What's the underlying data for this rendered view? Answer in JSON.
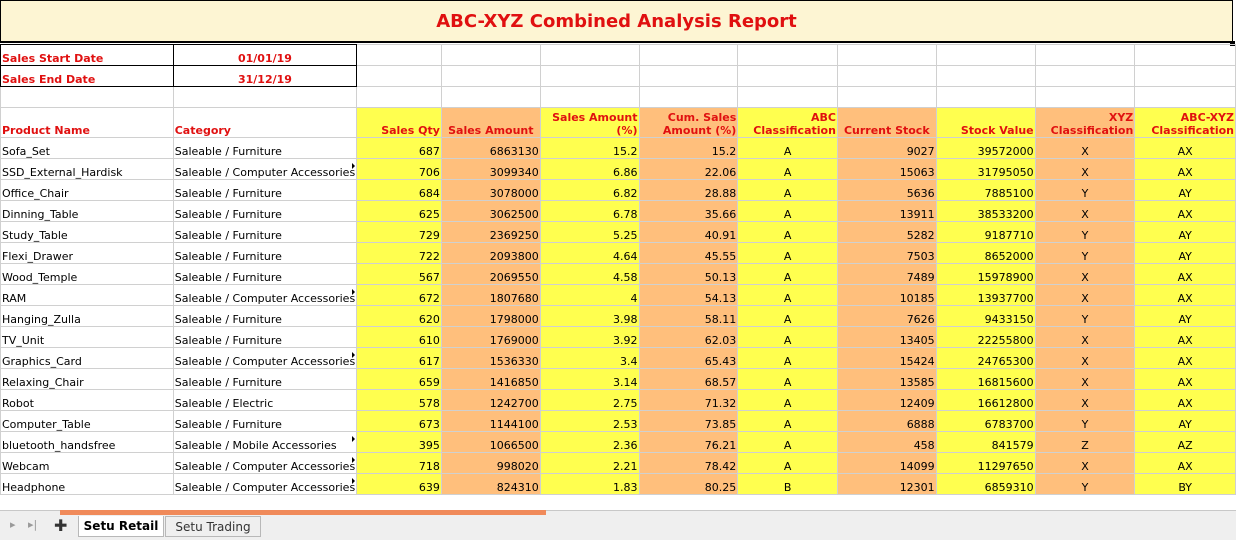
{
  "report": {
    "title": "ABC-XYZ Combined Analysis Report",
    "start_label": "Sales Start Date",
    "start_value": "01/01/19",
    "end_label": "Sales End Date",
    "end_value": "31/12/19"
  },
  "headers": {
    "product": "Product Name",
    "category": "Category",
    "qty": "Sales Qty",
    "amount": "Sales Amount",
    "amount_pct": "Sales Amount (%)",
    "cum": "Cum. Sales Amount (%)",
    "abc": "ABC Classification",
    "stock": "Current Stock",
    "stock_value": "Stock Value",
    "xyz": "XYZ Classification",
    "abcxyz": "ABC-XYZ Classification"
  },
  "rows": [
    {
      "product": "Sofa_Set",
      "category": "Saleable / Furniture",
      "qty": "687",
      "amount": "6863130",
      "pct": "15.2",
      "cum": "15.2",
      "abc": "A",
      "stock": "9027",
      "value": "39572000",
      "xyz": "X",
      "abcxyz": "AX"
    },
    {
      "product": "SSD_External_Hardisk",
      "category": "Saleable / Computer Accessories",
      "qty": "706",
      "amount": "3099340",
      "pct": "6.86",
      "cum": "22.06",
      "abc": "A",
      "stock": "15063",
      "value": "31795050",
      "xyz": "X",
      "abcxyz": "AX"
    },
    {
      "product": "Office_Chair",
      "category": "Saleable / Furniture",
      "qty": "684",
      "amount": "3078000",
      "pct": "6.82",
      "cum": "28.88",
      "abc": "A",
      "stock": "5636",
      "value": "7885100",
      "xyz": "Y",
      "abcxyz": "AY"
    },
    {
      "product": "Dinning_Table",
      "category": "Saleable / Furniture",
      "qty": "625",
      "amount": "3062500",
      "pct": "6.78",
      "cum": "35.66",
      "abc": "A",
      "stock": "13911",
      "value": "38533200",
      "xyz": "X",
      "abcxyz": "AX"
    },
    {
      "product": "Study_Table",
      "category": "Saleable / Furniture",
      "qty": "729",
      "amount": "2369250",
      "pct": "5.25",
      "cum": "40.91",
      "abc": "A",
      "stock": "5282",
      "value": "9187710",
      "xyz": "Y",
      "abcxyz": "AY"
    },
    {
      "product": "Flexi_Drawer",
      "category": "Saleable / Furniture",
      "qty": "722",
      "amount": "2093800",
      "pct": "4.64",
      "cum": "45.55",
      "abc": "A",
      "stock": "7503",
      "value": "8652000",
      "xyz": "Y",
      "abcxyz": "AY"
    },
    {
      "product": "Wood_Temple",
      "category": "Saleable / Furniture",
      "qty": "567",
      "amount": "2069550",
      "pct": "4.58",
      "cum": "50.13",
      "abc": "A",
      "stock": "7489",
      "value": "15978900",
      "xyz": "X",
      "abcxyz": "AX"
    },
    {
      "product": "RAM",
      "category": "Saleable / Computer Accessories",
      "qty": "672",
      "amount": "1807680",
      "pct": "4",
      "cum": "54.13",
      "abc": "A",
      "stock": "10185",
      "value": "13937700",
      "xyz": "X",
      "abcxyz": "AX"
    },
    {
      "product": "Hanging_Zulla",
      "category": "Saleable / Furniture",
      "qty": "620",
      "amount": "1798000",
      "pct": "3.98",
      "cum": "58.11",
      "abc": "A",
      "stock": "7626",
      "value": "9433150",
      "xyz": "Y",
      "abcxyz": "AY"
    },
    {
      "product": "TV_Unit",
      "category": "Saleable / Furniture",
      "qty": "610",
      "amount": "1769000",
      "pct": "3.92",
      "cum": "62.03",
      "abc": "A",
      "stock": "13405",
      "value": "22255800",
      "xyz": "X",
      "abcxyz": "AX"
    },
    {
      "product": "Graphics_Card",
      "category": "Saleable / Computer Accessories",
      "qty": "617",
      "amount": "1536330",
      "pct": "3.4",
      "cum": "65.43",
      "abc": "A",
      "stock": "15424",
      "value": "24765300",
      "xyz": "X",
      "abcxyz": "AX"
    },
    {
      "product": "Relaxing_Chair",
      "category": "Saleable / Furniture",
      "qty": "659",
      "amount": "1416850",
      "pct": "3.14",
      "cum": "68.57",
      "abc": "A",
      "stock": "13585",
      "value": "16815600",
      "xyz": "X",
      "abcxyz": "AX"
    },
    {
      "product": "Robot",
      "category": "Saleable / Electric",
      "qty": "578",
      "amount": "1242700",
      "pct": "2.75",
      "cum": "71.32",
      "abc": "A",
      "stock": "12409",
      "value": "16612800",
      "xyz": "X",
      "abcxyz": "AX"
    },
    {
      "product": "Computer_Table",
      "category": "Saleable / Furniture",
      "qty": "673",
      "amount": "1144100",
      "pct": "2.53",
      "cum": "73.85",
      "abc": "A",
      "stock": "6888",
      "value": "6783700",
      "xyz": "Y",
      "abcxyz": "AY"
    },
    {
      "product": "bluetooth_handsfree",
      "category": "Saleable / Mobile Accessories",
      "qty": "395",
      "amount": "1066500",
      "pct": "2.36",
      "cum": "76.21",
      "abc": "A",
      "stock": "458",
      "value": "841579",
      "xyz": "Z",
      "abcxyz": "AZ"
    },
    {
      "product": "Webcam",
      "category": "Saleable / Computer Accessories",
      "qty": "718",
      "amount": "998020",
      "pct": "2.21",
      "cum": "78.42",
      "abc": "A",
      "stock": "14099",
      "value": "11297650",
      "xyz": "X",
      "abcxyz": "AX"
    },
    {
      "product": "Headphone",
      "category": "Saleable / Computer Accessories",
      "qty": "639",
      "amount": "824310",
      "pct": "1.83",
      "cum": "80.25",
      "abc": "B",
      "stock": "12301",
      "value": "6859310",
      "xyz": "Y",
      "abcxyz": "BY"
    }
  ],
  "tabs": {
    "active": "Setu Retail",
    "inactive": "Setu Trading"
  },
  "icons": {
    "first": "first-sheet-icon",
    "last": "last-sheet-icon",
    "add": "add-sheet-icon"
  },
  "colors": {
    "header_text": "#e01010",
    "yellow_fill": "#ffff4f",
    "orange_fill": "#ffbf7c"
  }
}
